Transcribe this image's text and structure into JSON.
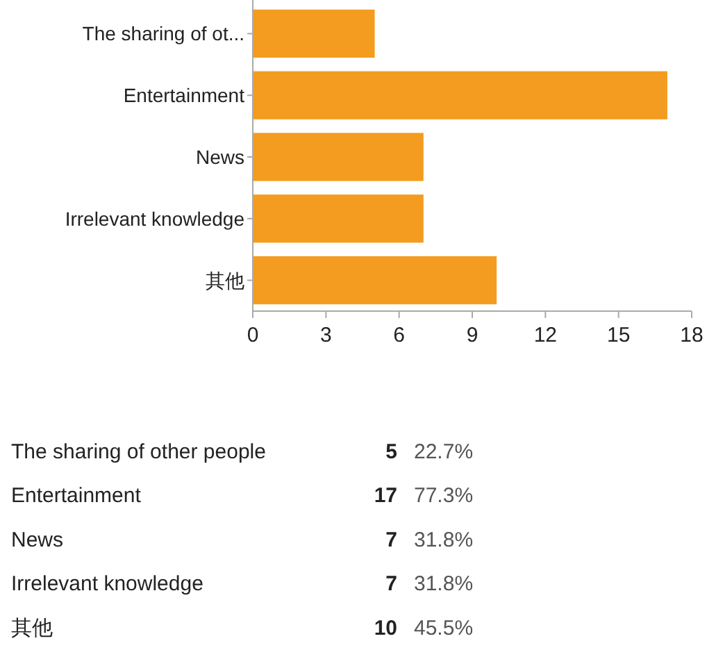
{
  "chart_data": {
    "type": "bar",
    "orientation": "horizontal",
    "categories": [
      "The sharing of ot...",
      "Entertainment",
      "News",
      "Irrelevant knowledge",
      "其他"
    ],
    "values": [
      5,
      17,
      7,
      7,
      10
    ],
    "color": "#f39c1f",
    "xlim": [
      0,
      18
    ],
    "xticks": [
      0,
      3,
      6,
      9,
      12,
      15,
      18
    ],
    "grid": false,
    "annotations": [
      "The sharing of other people",
      "5",
      "22.7%",
      "Entertainment",
      "17",
      "77.3%",
      "News",
      "7",
      "31.8%",
      "Irrelevant knowledge",
      "7",
      "31.8%",
      "其他",
      "10",
      "45.5%"
    ]
  }
}
